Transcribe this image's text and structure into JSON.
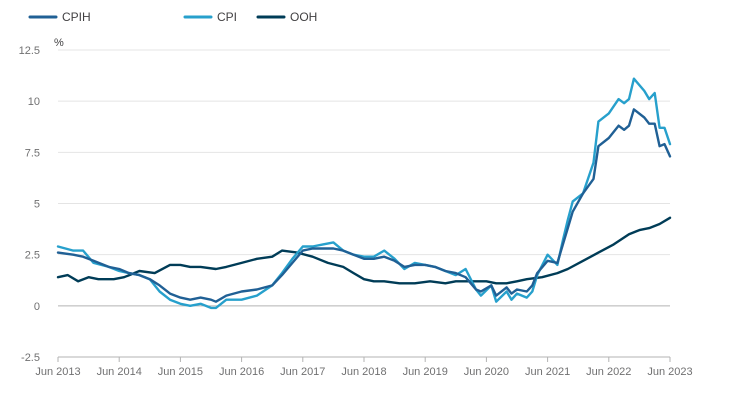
{
  "chart_data": {
    "type": "line",
    "unit_label": "%",
    "ylim": [
      -2.5,
      12.5
    ],
    "y_ticks": [
      "12.5",
      "10",
      "7.5",
      "5",
      "2.5",
      "0",
      "-2.5"
    ],
    "y_tick_values": [
      12.5,
      10,
      7.5,
      5,
      2.5,
      0,
      -2.5
    ],
    "x_range": [
      2013.42,
      2023.42
    ],
    "x_tick_labels": [
      "Jun 2013",
      "Jun 2014",
      "Jun 2015",
      "Jun 2016",
      "Jun 2017",
      "Jun 2018",
      "Jun 2019",
      "Jun 2020",
      "Jun 2021",
      "Jun 2022",
      "Jun 2023"
    ],
    "x_tick_values": [
      2013.42,
      2014.42,
      2015.42,
      2016.42,
      2017.42,
      2018.42,
      2019.42,
      2020.42,
      2021.42,
      2022.42,
      2023.42
    ],
    "grid": true,
    "legend_position": "top-left",
    "series": [
      {
        "name": "CPIH",
        "color": "#206095",
        "points": [
          [
            2013.42,
            2.6
          ],
          [
            2013.67,
            2.5
          ],
          [
            2013.83,
            2.4
          ],
          [
            2014.0,
            2.2
          ],
          [
            2014.25,
            1.9
          ],
          [
            2014.42,
            1.8
          ],
          [
            2014.58,
            1.6
          ],
          [
            2014.75,
            1.5
          ],
          [
            2014.92,
            1.3
          ],
          [
            2015.08,
            1.0
          ],
          [
            2015.25,
            0.6
          ],
          [
            2015.42,
            0.4
          ],
          [
            2015.58,
            0.3
          ],
          [
            2015.75,
            0.4
          ],
          [
            2015.92,
            0.3
          ],
          [
            2016.0,
            0.2
          ],
          [
            2016.17,
            0.5
          ],
          [
            2016.42,
            0.7
          ],
          [
            2016.67,
            0.8
          ],
          [
            2016.92,
            1.0
          ],
          [
            2017.08,
            1.5
          ],
          [
            2017.25,
            2.1
          ],
          [
            2017.42,
            2.7
          ],
          [
            2017.58,
            2.8
          ],
          [
            2017.75,
            2.8
          ],
          [
            2017.92,
            2.8
          ],
          [
            2018.08,
            2.7
          ],
          [
            2018.25,
            2.5
          ],
          [
            2018.42,
            2.3
          ],
          [
            2018.58,
            2.3
          ],
          [
            2018.75,
            2.4
          ],
          [
            2018.92,
            2.2
          ],
          [
            2019.08,
            1.9
          ],
          [
            2019.25,
            2.0
          ],
          [
            2019.42,
            2.0
          ],
          [
            2019.58,
            1.9
          ],
          [
            2019.75,
            1.7
          ],
          [
            2019.92,
            1.6
          ],
          [
            2020.08,
            1.4
          ],
          [
            2020.25,
            0.8
          ],
          [
            2020.33,
            0.7
          ],
          [
            2020.5,
            1.0
          ],
          [
            2020.58,
            0.5
          ],
          [
            2020.75,
            0.9
          ],
          [
            2020.83,
            0.6
          ],
          [
            2020.92,
            0.8
          ],
          [
            2021.08,
            0.7
          ],
          [
            2021.17,
            1.0
          ],
          [
            2021.25,
            1.6
          ],
          [
            2021.42,
            2.2
          ],
          [
            2021.58,
            2.1
          ],
          [
            2021.67,
            3.0
          ],
          [
            2021.75,
            3.8
          ],
          [
            2021.83,
            4.6
          ],
          [
            2022.0,
            5.5
          ],
          [
            2022.17,
            6.2
          ],
          [
            2022.25,
            7.8
          ],
          [
            2022.42,
            8.2
          ],
          [
            2022.58,
            8.8
          ],
          [
            2022.67,
            8.6
          ],
          [
            2022.75,
            8.8
          ],
          [
            2022.83,
            9.6
          ],
          [
            2023.0,
            9.2
          ],
          [
            2023.08,
            8.9
          ],
          [
            2023.17,
            8.9
          ],
          [
            2023.25,
            7.8
          ],
          [
            2023.33,
            7.9
          ],
          [
            2023.42,
            7.3
          ]
        ]
      },
      {
        "name": "CPI",
        "color": "#27a0cc",
        "points": [
          [
            2013.42,
            2.9
          ],
          [
            2013.67,
            2.7
          ],
          [
            2013.83,
            2.7
          ],
          [
            2014.0,
            2.1
          ],
          [
            2014.25,
            1.9
          ],
          [
            2014.42,
            1.7
          ],
          [
            2014.58,
            1.6
          ],
          [
            2014.75,
            1.5
          ],
          [
            2014.92,
            1.3
          ],
          [
            2015.08,
            0.7
          ],
          [
            2015.25,
            0.3
          ],
          [
            2015.42,
            0.1
          ],
          [
            2015.58,
            0.0
          ],
          [
            2015.75,
            0.1
          ],
          [
            2015.92,
            -0.1
          ],
          [
            2016.0,
            -0.1
          ],
          [
            2016.17,
            0.3
          ],
          [
            2016.42,
            0.3
          ],
          [
            2016.67,
            0.5
          ],
          [
            2016.92,
            1.0
          ],
          [
            2017.08,
            1.6
          ],
          [
            2017.25,
            2.3
          ],
          [
            2017.42,
            2.9
          ],
          [
            2017.58,
            2.9
          ],
          [
            2017.75,
            3.0
          ],
          [
            2017.92,
            3.1
          ],
          [
            2018.08,
            2.7
          ],
          [
            2018.25,
            2.5
          ],
          [
            2018.42,
            2.4
          ],
          [
            2018.58,
            2.4
          ],
          [
            2018.75,
            2.7
          ],
          [
            2018.92,
            2.3
          ],
          [
            2019.08,
            1.8
          ],
          [
            2019.25,
            2.1
          ],
          [
            2019.42,
            2.0
          ],
          [
            2019.58,
            1.9
          ],
          [
            2019.75,
            1.7
          ],
          [
            2019.92,
            1.5
          ],
          [
            2020.08,
            1.8
          ],
          [
            2020.25,
            0.8
          ],
          [
            2020.33,
            0.5
          ],
          [
            2020.5,
            1.0
          ],
          [
            2020.58,
            0.2
          ],
          [
            2020.75,
            0.7
          ],
          [
            2020.83,
            0.3
          ],
          [
            2020.92,
            0.6
          ],
          [
            2021.08,
            0.4
          ],
          [
            2021.17,
            0.7
          ],
          [
            2021.25,
            1.5
          ],
          [
            2021.42,
            2.5
          ],
          [
            2021.58,
            2.0
          ],
          [
            2021.67,
            3.2
          ],
          [
            2021.75,
            4.2
          ],
          [
            2021.83,
            5.1
          ],
          [
            2022.0,
            5.5
          ],
          [
            2022.17,
            7.0
          ],
          [
            2022.25,
            9.0
          ],
          [
            2022.42,
            9.4
          ],
          [
            2022.58,
            10.1
          ],
          [
            2022.67,
            9.9
          ],
          [
            2022.75,
            10.1
          ],
          [
            2022.83,
            11.1
          ],
          [
            2023.0,
            10.5
          ],
          [
            2023.08,
            10.1
          ],
          [
            2023.17,
            10.4
          ],
          [
            2023.25,
            8.7
          ],
          [
            2023.33,
            8.7
          ],
          [
            2023.42,
            7.9
          ]
        ]
      },
      {
        "name": "OOH",
        "color": "#003c57",
        "points": [
          [
            2013.42,
            1.4
          ],
          [
            2013.58,
            1.5
          ],
          [
            2013.75,
            1.2
          ],
          [
            2013.92,
            1.4
          ],
          [
            2014.08,
            1.3
          ],
          [
            2014.33,
            1.3
          ],
          [
            2014.5,
            1.4
          ],
          [
            2014.75,
            1.7
          ],
          [
            2015.0,
            1.6
          ],
          [
            2015.25,
            2.0
          ],
          [
            2015.42,
            2.0
          ],
          [
            2015.58,
            1.9
          ],
          [
            2015.75,
            1.9
          ],
          [
            2016.0,
            1.8
          ],
          [
            2016.17,
            1.9
          ],
          [
            2016.42,
            2.1
          ],
          [
            2016.67,
            2.3
          ],
          [
            2016.92,
            2.4
          ],
          [
            2017.08,
            2.7
          ],
          [
            2017.33,
            2.6
          ],
          [
            2017.58,
            2.4
          ],
          [
            2017.83,
            2.1
          ],
          [
            2018.08,
            1.9
          ],
          [
            2018.25,
            1.6
          ],
          [
            2018.42,
            1.3
          ],
          [
            2018.58,
            1.2
          ],
          [
            2018.75,
            1.2
          ],
          [
            2019.0,
            1.1
          ],
          [
            2019.25,
            1.1
          ],
          [
            2019.5,
            1.2
          ],
          [
            2019.75,
            1.1
          ],
          [
            2019.92,
            1.2
          ],
          [
            2020.17,
            1.2
          ],
          [
            2020.42,
            1.2
          ],
          [
            2020.58,
            1.1
          ],
          [
            2020.75,
            1.1
          ],
          [
            2020.92,
            1.2
          ],
          [
            2021.08,
            1.3
          ],
          [
            2021.33,
            1.4
          ],
          [
            2021.58,
            1.6
          ],
          [
            2021.75,
            1.8
          ],
          [
            2022.0,
            2.2
          ],
          [
            2022.25,
            2.6
          ],
          [
            2022.5,
            3.0
          ],
          [
            2022.75,
            3.5
          ],
          [
            2022.92,
            3.7
          ],
          [
            2023.08,
            3.8
          ],
          [
            2023.25,
            4.0
          ],
          [
            2023.42,
            4.3
          ]
        ]
      }
    ]
  }
}
